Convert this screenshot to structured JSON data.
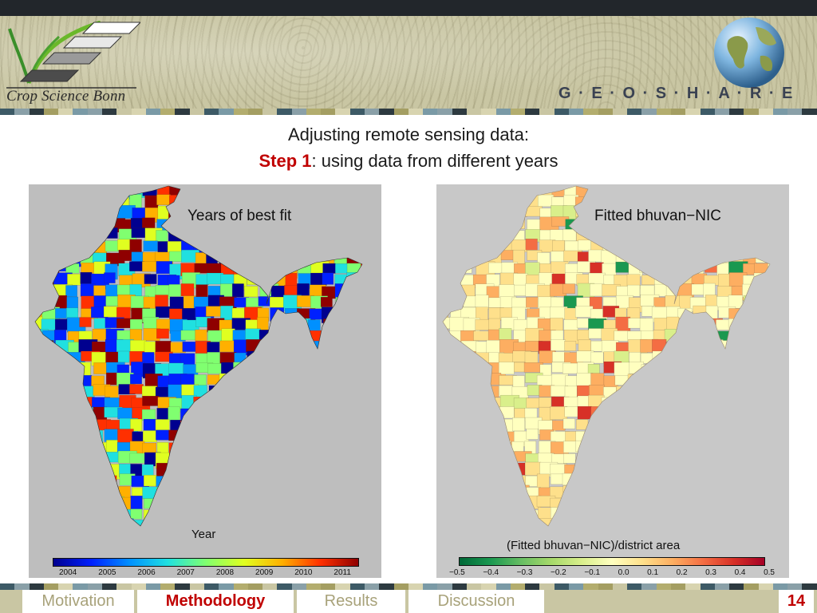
{
  "header": {
    "logo_text": "Crop Science Bonn",
    "brand": "G · E · O · S · H · A · R · E",
    "accent_color": "#c00000",
    "bar_color": "#22262b"
  },
  "slide_title": {
    "line1": "Adjusting remote sensing data:",
    "step_label": "Step 1",
    "step_rest": ": using data from different years"
  },
  "maps": [
    {
      "title": "Years of best fit",
      "colorbar_label": "Year",
      "ticks": [
        "2004",
        "2005",
        "2006",
        "2007",
        "2008",
        "2009",
        "2010",
        "2011"
      ],
      "palette": [
        "#00008f",
        "#0020ff",
        "#0090ff",
        "#20e0e0",
        "#80ff70",
        "#e0ff20",
        "#ffb000",
        "#ff3000",
        "#8f0000"
      ]
    },
    {
      "title": "Fitted bhuvan−NIC",
      "colorbar_label": "(Fitted bhuvan−NIC)/district area",
      "ticks": [
        "−0.5",
        "−0.4",
        "−0.3",
        "−0.2",
        "−0.1",
        "0.0",
        "0.1",
        "0.2",
        "0.3",
        "0.4",
        "0.5"
      ],
      "palette": [
        "#006837",
        "#1a9850",
        "#66bd63",
        "#a6d96a",
        "#d9ef8b",
        "#ffffbf",
        "#fee08b",
        "#fdae61",
        "#f46d43",
        "#d73027",
        "#a50026"
      ]
    }
  ],
  "nav": {
    "items": [
      "Motivation",
      "Methodology",
      "Results",
      "Discussion"
    ],
    "active": "Methodology",
    "page": "14"
  }
}
